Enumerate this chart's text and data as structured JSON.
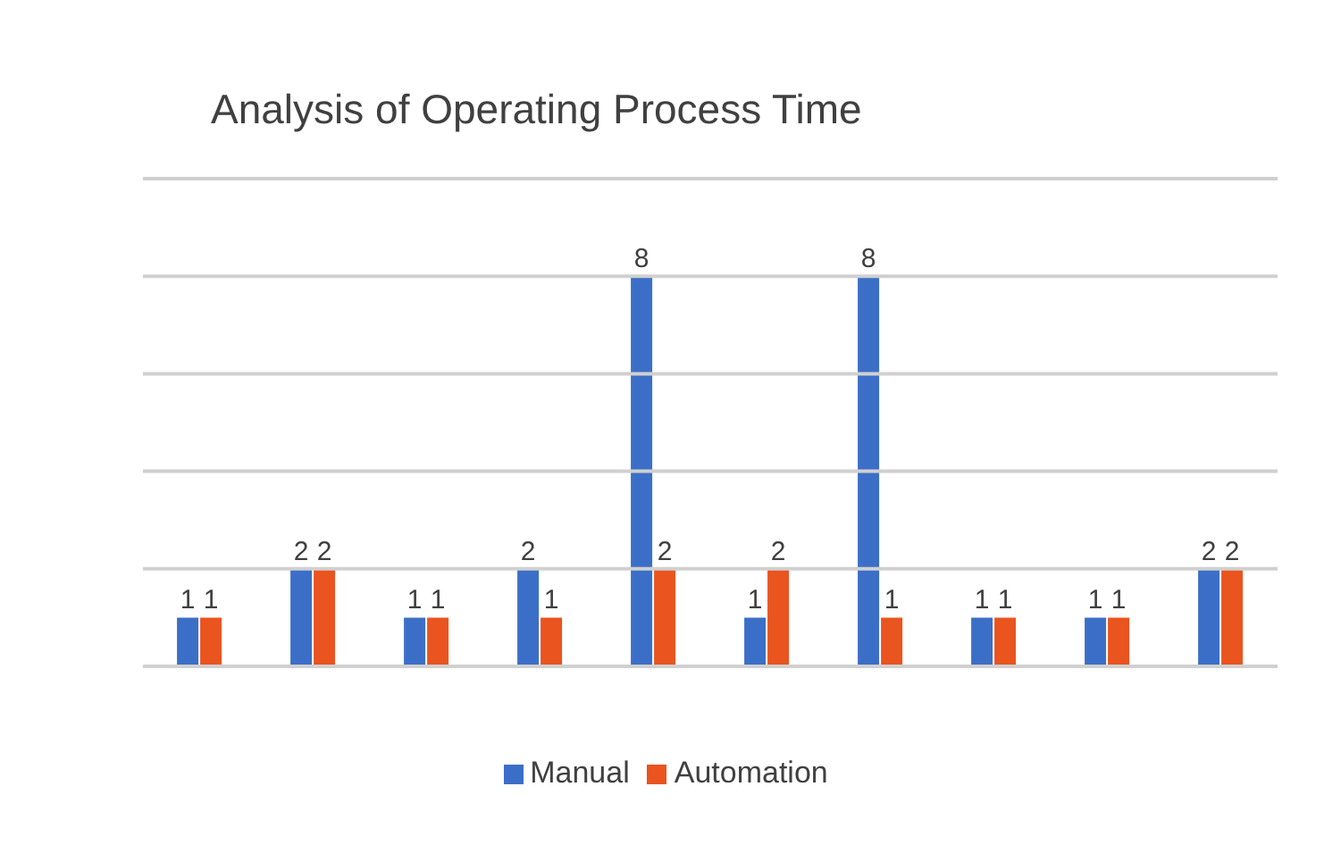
{
  "chart_data": {
    "type": "bar",
    "title": "Analysis of Operating Process Time",
    "categories": [
      null,
      null,
      null,
      null,
      null,
      null,
      null,
      null,
      null,
      null
    ],
    "series": [
      {
        "name": "Manual",
        "color": "#3b6fc7",
        "values": [
          1,
          2,
          1,
          2,
          8,
          1,
          8,
          1,
          1,
          2
        ]
      },
      {
        "name": "Automation",
        "color": "#e9541f",
        "values": [
          1,
          2,
          1,
          1,
          2,
          2,
          1,
          1,
          1,
          2
        ]
      }
    ],
    "ylim": [
      0,
      10
    ],
    "yticks": [
      {
        "value": 0,
        "label": null
      },
      {
        "value": 2,
        "label": null
      },
      {
        "value": 4,
        "label": null
      },
      {
        "value": 6,
        "label": null
      },
      {
        "value": 8,
        "label": null
      },
      {
        "value": 10,
        "label": null
      }
    ],
    "grid": "y",
    "legend": "bottom",
    "data_labels": true
  }
}
